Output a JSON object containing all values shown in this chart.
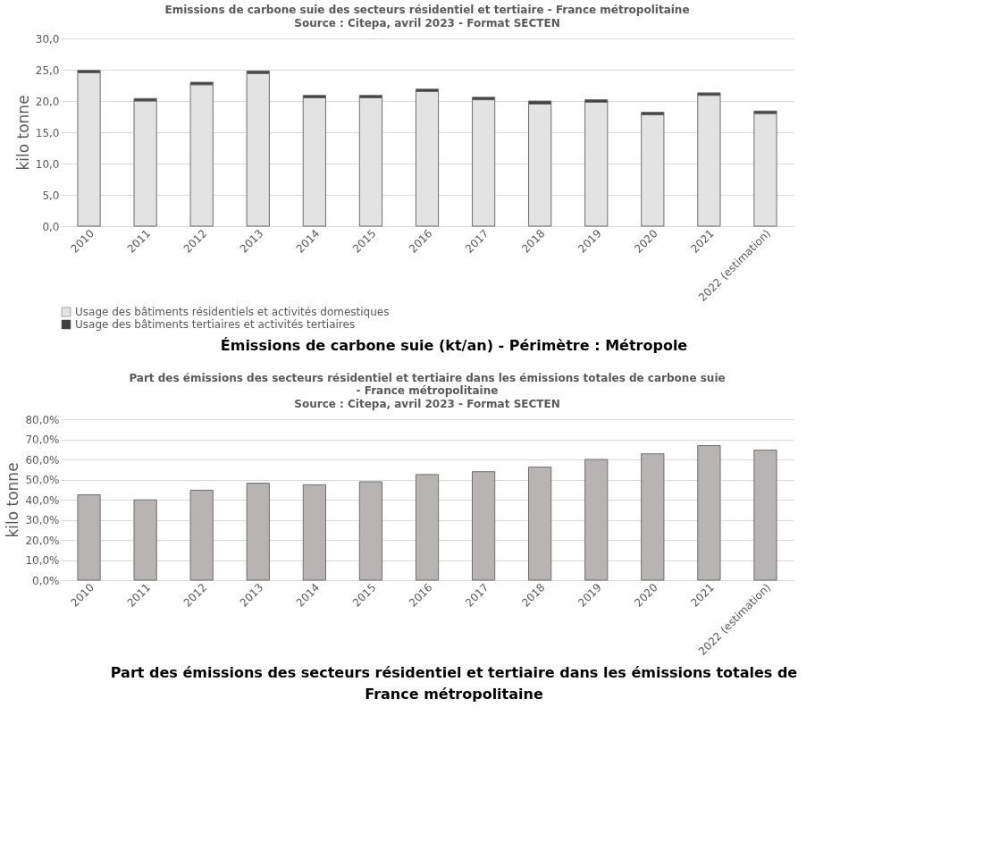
{
  "chart_data": [
    {
      "type": "bar",
      "title": "Emissions de carbone suie des secteurs résidentiel et tertiaire - France métropolitaine",
      "subtitle": "Source : Citepa, avril 2023 - Format SECTEN",
      "ylabel": "kilo tonne",
      "categories": [
        "2010",
        "2011",
        "2012",
        "2013",
        "2014",
        "2015",
        "2016",
        "2017",
        "2018",
        "2019",
        "2020",
        "2021",
        "2022 (estimation)"
      ],
      "stacked": true,
      "series": [
        {
          "name": "Usage des bâtiments résidentiels et activités domestiques",
          "color": "#e3e3e3",
          "values": [
            24.5,
            20.0,
            22.6,
            24.4,
            20.5,
            20.5,
            21.5,
            20.2,
            19.5,
            19.8,
            17.8,
            20.9,
            18.0
          ]
        },
        {
          "name": "Usage des bâtiments tertiaires et activités tertiaires",
          "color": "#404040",
          "values": [
            0.4,
            0.4,
            0.4,
            0.4,
            0.4,
            0.4,
            0.4,
            0.4,
            0.5,
            0.4,
            0.4,
            0.4,
            0.4
          ]
        }
      ],
      "ylim": [
        0,
        30
      ],
      "yticks": [
        {
          "value": 0,
          "label": "0,0"
        },
        {
          "value": 5,
          "label": "5,0"
        },
        {
          "value": 10,
          "label": "10,0"
        },
        {
          "value": 15,
          "label": "15,0"
        },
        {
          "value": 20,
          "label": "20,0"
        },
        {
          "value": 25,
          "label": "25,0"
        },
        {
          "value": 30,
          "label": "30,0"
        }
      ],
      "grid": "y",
      "legend": "bottom left",
      "annotations": [
        "Émissions de carbone suie (kt/an) - Périmètre : Métropole"
      ]
    },
    {
      "type": "bar",
      "title": "Part des émissions des secteurs résidentiel et tertiaire dans les émissions totales de carbone suie - France métropolitaine",
      "subtitle": "Source : Citepa, avril 2023 - Format SECTEN",
      "ylabel": "kilo tonne",
      "categories": [
        "2010",
        "2011",
        "2012",
        "2013",
        "2014",
        "2015",
        "2016",
        "2017",
        "2018",
        "2019",
        "2020",
        "2021",
        "2022 (estimation)"
      ],
      "series": [
        {
          "color": "#b8b4b4",
          "values": [
            42.4,
            39.9,
            44.7,
            48.2,
            47.4,
            48.9,
            52.5,
            53.9,
            56.2,
            60.0,
            62.8,
            66.9,
            64.6
          ]
        }
      ],
      "ylim": [
        0,
        80
      ],
      "yticks": [
        {
          "value": 0,
          "label": "0,0%"
        },
        {
          "value": 10,
          "label": "10,0%"
        },
        {
          "value": 20,
          "label": "20,0%"
        },
        {
          "value": 30,
          "label": "30,0%"
        },
        {
          "value": 40,
          "label": "40,0%"
        },
        {
          "value": 50,
          "label": "50,0%"
        },
        {
          "value": 60,
          "label": "60,0%"
        },
        {
          "value": 70,
          "label": "70,0%"
        },
        {
          "value": 80,
          "label": "80,0%"
        }
      ],
      "grid": "y",
      "annotations": [
        "Part des émissions des secteurs résidentiel et tertiaire dans les émissions totales de France métropolitaine"
      ]
    }
  ]
}
